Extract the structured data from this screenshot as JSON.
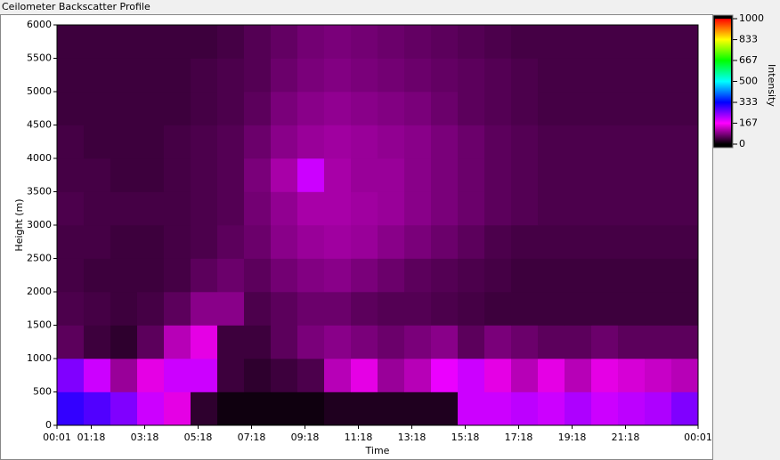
{
  "chart_data": {
    "type": "heatmap",
    "title": "Ceilometer Backscatter Profile",
    "xlabel": "Time",
    "ylabel": "Height (m)",
    "zlabel": "Intensity",
    "xlim": [
      0,
      1440
    ],
    "xticks": [
      {
        "value": 0,
        "label": "00:01"
      },
      {
        "value": 77,
        "label": "01:18"
      },
      {
        "value": 197,
        "label": "03:18"
      },
      {
        "value": 317,
        "label": "05:18"
      },
      {
        "value": 437,
        "label": "07:18"
      },
      {
        "value": 557,
        "label": "09:18"
      },
      {
        "value": 677,
        "label": "11:18"
      },
      {
        "value": 797,
        "label": "13:18"
      },
      {
        "value": 917,
        "label": "15:18"
      },
      {
        "value": 1037,
        "label": "17:18"
      },
      {
        "value": 1157,
        "label": "19:18"
      },
      {
        "value": 1277,
        "label": "21:18"
      },
      {
        "value": 1440,
        "label": "00:01"
      }
    ],
    "ylim": [
      0,
      6000
    ],
    "yticks": [
      0,
      500,
      1000,
      1500,
      2000,
      2500,
      3000,
      3500,
      4000,
      4500,
      5000,
      5500,
      6000
    ],
    "xbins": [
      0,
      60,
      120,
      180,
      240,
      300,
      360,
      420,
      480,
      540,
      600,
      660,
      720,
      780,
      840,
      900,
      960,
      1020,
      1080,
      1140,
      1200,
      1260,
      1320,
      1380,
      1440
    ],
    "ybins": [
      0,
      500,
      1000,
      1500,
      2000,
      2500,
      3000,
      3500,
      4000,
      4500,
      5000,
      5500,
      6000
    ],
    "z": [
      [
        300,
        280,
        250,
        200,
        150,
        30,
        10,
        10,
        10,
        10,
        20,
        20,
        20,
        20,
        20,
        200,
        200,
        210,
        200,
        220,
        200,
        210,
        220,
        250
      ],
      [
        250,
        200,
        100,
        150,
        200,
        200,
        40,
        30,
        40,
        50,
        120,
        150,
        100,
        120,
        180,
        200,
        150,
        120,
        150,
        120,
        150,
        140,
        130,
        120
      ],
      [
        60,
        40,
        30,
        60,
        120,
        150,
        40,
        40,
        60,
        80,
        90,
        80,
        70,
        80,
        90,
        60,
        80,
        70,
        60,
        60,
        70,
        60,
        60,
        60
      ],
      [
        50,
        45,
        40,
        45,
        60,
        90,
        90,
        50,
        60,
        70,
        70,
        60,
        55,
        55,
        50,
        45,
        40,
        40,
        40,
        40,
        40,
        40,
        40,
        40
      ],
      [
        45,
        40,
        40,
        40,
        45,
        60,
        70,
        60,
        75,
        85,
        90,
        80,
        70,
        60,
        55,
        50,
        45,
        40,
        40,
        40,
        40,
        40,
        40,
        40
      ],
      [
        45,
        45,
        40,
        40,
        45,
        50,
        60,
        70,
        90,
        100,
        105,
        100,
        90,
        80,
        70,
        60,
        50,
        45,
        45,
        45,
        45,
        45,
        45,
        45
      ],
      [
        50,
        45,
        45,
        45,
        45,
        50,
        55,
        75,
        95,
        110,
        110,
        105,
        100,
        90,
        80,
        70,
        60,
        55,
        50,
        50,
        50,
        50,
        50,
        50
      ],
      [
        45,
        45,
        40,
        40,
        45,
        50,
        55,
        80,
        110,
        200,
        110,
        100,
        100,
        90,
        80,
        70,
        60,
        55,
        50,
        50,
        50,
        50,
        50,
        50
      ],
      [
        45,
        40,
        40,
        40,
        45,
        50,
        55,
        70,
        90,
        100,
        105,
        100,
        95,
        90,
        80,
        70,
        60,
        55,
        50,
        50,
        50,
        50,
        50,
        50
      ],
      [
        40,
        40,
        40,
        40,
        40,
        45,
        50,
        60,
        80,
        90,
        95,
        90,
        85,
        80,
        70,
        60,
        55,
        50,
        45,
        45,
        45,
        45,
        45,
        45
      ],
      [
        40,
        40,
        40,
        40,
        40,
        45,
        50,
        55,
        70,
        80,
        85,
        80,
        75,
        70,
        65,
        60,
        55,
        50,
        45,
        45,
        45,
        45,
        45,
        45
      ],
      [
        40,
        40,
        40,
        40,
        40,
        40,
        45,
        55,
        65,
        75,
        80,
        75,
        70,
        65,
        60,
        55,
        50,
        45,
        45,
        45,
        45,
        45,
        45,
        45
      ]
    ],
    "zlim": [
      0,
      1000
    ],
    "zticks": [
      0,
      167,
      333,
      500,
      667,
      833,
      1000
    ],
    "zcolors": [
      "#000000",
      "#ff00ff",
      "#0000ff",
      "#00ffff",
      "#00ff00",
      "#ffff00",
      "#ff0000"
    ]
  }
}
